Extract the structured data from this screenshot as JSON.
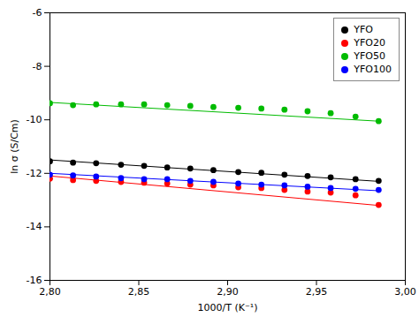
{
  "chart_data": {
    "type": "scatter",
    "xlabel": "1000/T (K⁻¹)",
    "ylabel": "ln σ (S/Cm)",
    "xlim": [
      2.8,
      3.0
    ],
    "ylim": [
      -16,
      -6
    ],
    "xticks": [
      {
        "value": 2.8,
        "label": "2,80"
      },
      {
        "value": 2.85,
        "label": "2,85"
      },
      {
        "value": 2.9,
        "label": "2,90"
      },
      {
        "value": 2.95,
        "label": "2,95"
      },
      {
        "value": 3.0,
        "label": "3,00"
      }
    ],
    "yticks": [
      -16,
      -14,
      -12,
      -10,
      -8,
      -6
    ],
    "grid": false,
    "legend": "upper right",
    "marker": "circle",
    "series": [
      {
        "name": "YFO",
        "color": "#000000",
        "x": [
          2.8,
          2.813,
          2.826,
          2.84,
          2.853,
          2.866,
          2.879,
          2.892,
          2.906,
          2.919,
          2.932,
          2.945,
          2.958,
          2.972,
          2.985
        ],
        "values": [
          -11.55,
          -11.6,
          -11.62,
          -11.68,
          -11.72,
          -11.78,
          -11.82,
          -11.88,
          -11.95,
          -11.98,
          -12.05,
          -12.1,
          -12.15,
          -12.22,
          -12.28
        ],
        "fit_x": [
          2.8,
          2.985
        ],
        "fit_y": [
          -11.5,
          -12.3
        ]
      },
      {
        "name": "YFO20",
        "color": "#ff0000",
        "x": [
          2.8,
          2.813,
          2.826,
          2.84,
          2.853,
          2.866,
          2.879,
          2.892,
          2.906,
          2.919,
          2.932,
          2.945,
          2.958,
          2.972,
          2.985
        ],
        "values": [
          -12.2,
          -12.25,
          -12.28,
          -12.32,
          -12.35,
          -12.38,
          -12.42,
          -12.45,
          -12.52,
          -12.55,
          -12.62,
          -12.68,
          -12.72,
          -12.82,
          -13.18
        ],
        "fit_x": [
          2.8,
          2.985
        ],
        "fit_y": [
          -12.1,
          -13.2
        ]
      },
      {
        "name": "YFO50",
        "color": "#00bb00",
        "x": [
          2.8,
          2.813,
          2.826,
          2.84,
          2.853,
          2.866,
          2.879,
          2.892,
          2.906,
          2.919,
          2.932,
          2.945,
          2.958,
          2.972,
          2.985
        ],
        "values": [
          -9.38,
          -9.45,
          -9.42,
          -9.42,
          -9.42,
          -9.45,
          -9.48,
          -9.52,
          -9.55,
          -9.58,
          -9.62,
          -9.68,
          -9.75,
          -9.88,
          -10.05
        ],
        "fit_x": [
          2.8,
          2.985
        ],
        "fit_y": [
          -9.35,
          -10.05
        ]
      },
      {
        "name": "YFO100",
        "color": "#0000ff",
        "x": [
          2.8,
          2.813,
          2.826,
          2.84,
          2.853,
          2.866,
          2.879,
          2.892,
          2.906,
          2.919,
          2.932,
          2.945,
          2.958,
          2.972,
          2.985
        ],
        "values": [
          -12.05,
          -12.08,
          -12.12,
          -12.18,
          -12.22,
          -12.22,
          -12.28,
          -12.32,
          -12.38,
          -12.42,
          -12.45,
          -12.5,
          -12.55,
          -12.58,
          -12.62
        ],
        "fit_x": [
          2.8,
          2.985
        ],
        "fit_y": [
          -12.0,
          -12.65
        ]
      }
    ]
  }
}
